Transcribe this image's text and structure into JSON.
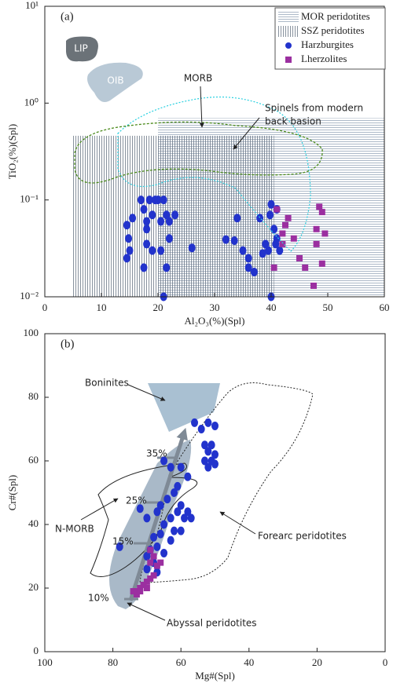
{
  "chart_data": [
    {
      "type": "scatter",
      "panel_label": "(a)",
      "x_label": "Al₂O₃(%)(Spl)",
      "y_label": "TiO₂(%)(Spl)",
      "xlim": [
        0,
        60
      ],
      "xticks": [
        0,
        10,
        20,
        30,
        40,
        50,
        60
      ],
      "yscale": "log",
      "ylim": [
        0.01,
        10
      ],
      "yticks": [
        {
          "value": 0.01,
          "label": "10⁻²"
        },
        {
          "value": 0.1,
          "label": "10⁻¹"
        },
        {
          "value": 1,
          "label": "10⁰"
        },
        {
          "value": 10,
          "label": "10¹"
        }
      ],
      "legend": "upper right",
      "regions": [
        {
          "name": "MOR peridotites",
          "pattern": "horizontal",
          "x": [
            20,
            60
          ],
          "y": [
            0.01,
            0.7
          ]
        },
        {
          "name": "SSZ peridotites",
          "pattern": "vertical",
          "x": [
            5,
            40.5
          ],
          "y": [
            0.01,
            0.46
          ]
        }
      ],
      "series": [
        {
          "name": "Harzburgites",
          "color": "#2233cc",
          "marker": "circle",
          "x": [
            14.5,
            14.8,
            15,
            14.5,
            15.5,
            17,
            17.5,
            18,
            18,
            18.5,
            19,
            19.5,
            20,
            20.5,
            21,
            21.5,
            22,
            22,
            23,
            18,
            19,
            17.5,
            20.5,
            21.5,
            21,
            26,
            32,
            33.5,
            34,
            35,
            36,
            36,
            37,
            38,
            38.5,
            39,
            39.5,
            40,
            40.5,
            41,
            41,
            41.5,
            40,
            39.8,
            40.8
          ],
          "values": [
            0.055,
            0.04,
            0.03,
            0.025,
            0.065,
            0.1,
            0.08,
            0.06,
            0.05,
            0.1,
            0.07,
            0.1,
            0.1,
            0.06,
            0.1,
            0.07,
            0.06,
            0.04,
            0.07,
            0.035,
            0.03,
            0.02,
            0.03,
            0.02,
            0.01,
            0.032,
            0.039,
            0.038,
            0.065,
            0.03,
            0.025,
            0.02,
            0.018,
            0.065,
            0.028,
            0.035,
            0.03,
            0.09,
            0.05,
            0.08,
            0.04,
            0.03,
            0.01,
            0.07,
            0.035
          ]
        },
        {
          "name": "Lherzolites",
          "color": "#9b2fa0",
          "marker": "square",
          "x": [
            41,
            42,
            42.5,
            43,
            42,
            44,
            45,
            40.5,
            48.5,
            49,
            48,
            48,
            49.5,
            49,
            47.5,
            46
          ],
          "values": [
            0.08,
            0.045,
            0.055,
            0.065,
            0.035,
            0.04,
            0.025,
            0.02,
            0.085,
            0.075,
            0.05,
            0.035,
            0.045,
            0.022,
            0.013,
            0.02
          ]
        }
      ],
      "annotations": [
        "LIP",
        "OIB",
        "MORB",
        "Spinels from modern",
        "back basion"
      ]
    },
    {
      "type": "scatter",
      "panel_label": "(b)",
      "x_label": "Mg#(Spl)",
      "y_label": "Cr#(Spl)",
      "xlim": [
        100,
        0
      ],
      "xticks": [
        100,
        80,
        60,
        40,
        20,
        0
      ],
      "ylim": [
        0,
        100
      ],
      "yticks": [
        0,
        20,
        40,
        60,
        80,
        100
      ],
      "series": [
        {
          "name": "Harzburgites",
          "color": "#2233cc",
          "marker": "circle",
          "x": [
            56,
            52,
            50,
            54,
            53,
            51,
            52,
            50,
            53,
            51,
            50,
            52,
            65,
            63,
            60,
            58,
            61,
            62,
            64,
            66,
            60,
            58,
            61,
            67,
            63,
            59,
            57,
            65,
            62,
            60,
            66,
            68,
            63,
            67,
            69,
            65,
            70,
            68,
            70,
            67,
            78,
            72,
            70
          ],
          "values": [
            72,
            72,
            71,
            70,
            65,
            65,
            63,
            62,
            60,
            60,
            59,
            58,
            60,
            58,
            58,
            55,
            52,
            50,
            48,
            46,
            46,
            44,
            44,
            44,
            42,
            42,
            42,
            40,
            38,
            38,
            37,
            36,
            35,
            33,
            32,
            31,
            30,
            28,
            26,
            25,
            33,
            45,
            42
          ]
        },
        {
          "name": "Lherzolites",
          "color": "#9b2fa0",
          "marker": "square",
          "x": [
            69,
            68,
            69,
            67,
            66,
            68,
            70,
            71,
            72,
            73,
            69,
            70,
            73,
            72,
            74
          ],
          "values": [
            32,
            30,
            28,
            27,
            28,
            24,
            22,
            21,
            20,
            19,
            23,
            20,
            18,
            19,
            19
          ]
        }
      ],
      "annotations": [
        "Boninites",
        "N-MORB",
        "Forearc peridotites",
        "Abyssal peridotites",
        "35%",
        "25%",
        "15%",
        "10%"
      ]
    }
  ]
}
